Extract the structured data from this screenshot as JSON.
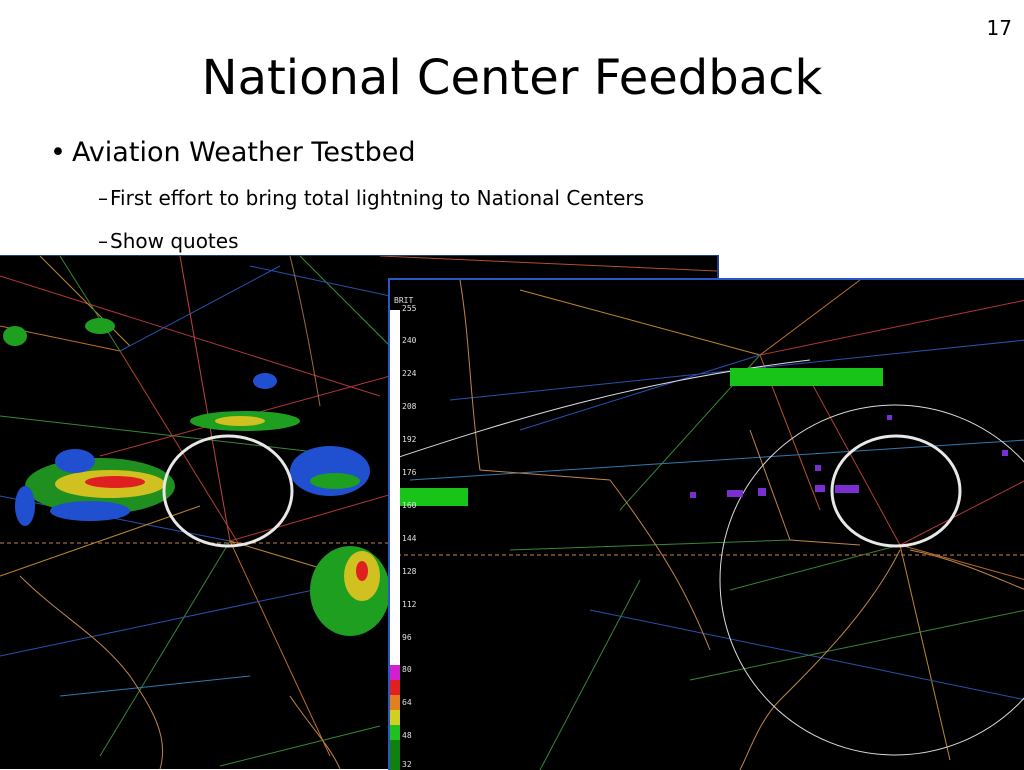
{
  "slide": {
    "number": "17",
    "title": "National Center Feedback",
    "bullet": "Aviation Weather Testbed",
    "sub_bullets": [
      "First effort to bring total lightning to National Centers",
      "Show quotes"
    ]
  },
  "colorbar": {
    "label": "BRIT",
    "ticks": [
      "255",
      "240",
      "224",
      "208",
      "192",
      "176",
      "160",
      "144",
      "128",
      "112",
      "96",
      "80",
      "64",
      "48",
      "32"
    ]
  },
  "colors": {
    "background": "#000000",
    "frame_border": "#2a56c6",
    "coast": "#c0844a",
    "circle": "#e8e8e8"
  }
}
